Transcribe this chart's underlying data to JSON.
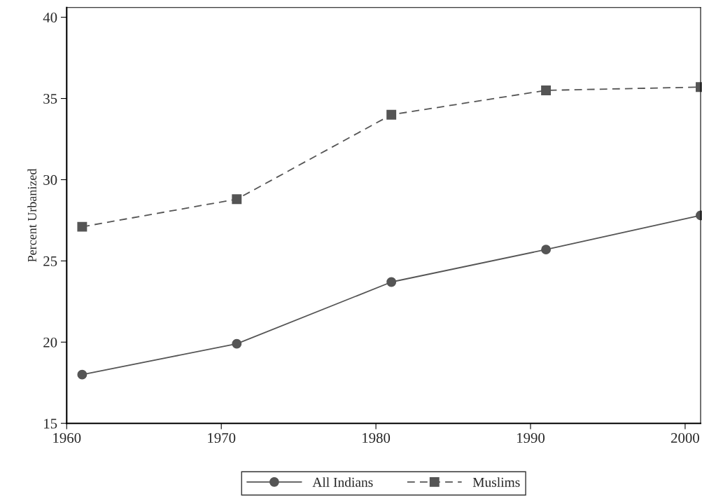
{
  "chart_data": {
    "type": "line",
    "ylabel": "Percent Urbanized",
    "x": [
      1961,
      1971,
      1981,
      1991,
      2001
    ],
    "xlim": [
      1960,
      2001
    ],
    "xticks": [
      1960,
      1970,
      1980,
      1990,
      2000
    ],
    "ylim": [
      15,
      40.6
    ],
    "yticks": [
      15,
      20,
      25,
      30,
      35,
      40
    ],
    "grid": false,
    "legend": "bottom",
    "series": [
      {
        "name": "All Indians",
        "color": "#555555",
        "marker": "circle",
        "line_style": "solid",
        "values": [
          18.0,
          19.9,
          23.7,
          25.7,
          27.8
        ]
      },
      {
        "name": "Muslims",
        "color": "#555555",
        "marker": "square",
        "line_style": "dashed",
        "values": [
          27.1,
          28.8,
          34.0,
          35.5,
          35.7
        ]
      }
    ]
  }
}
